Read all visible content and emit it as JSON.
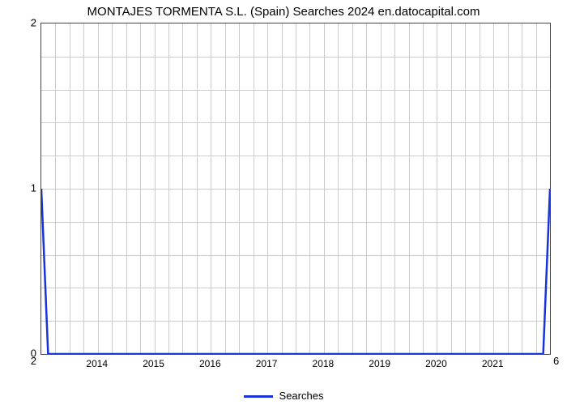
{
  "chart": {
    "type": "line",
    "title": "MONTAJES TORMENTA S.L. (Spain) Searches 2024 en.datocapital.com",
    "title_fontsize": 15,
    "title_color": "#000000",
    "background_color": "#ffffff",
    "plot_border_color": "#444444",
    "grid_color": "#cccccc",
    "series_color": "#1733d9",
    "series_line_width": 2.5,
    "x": {
      "min": 2013,
      "max": 2022,
      "ticks": [
        2014,
        2015,
        2016,
        2017,
        2018,
        2019,
        2020,
        2021
      ],
      "tick_labels": [
        "2014",
        "2015",
        "2016",
        "2017",
        "2018",
        "2019",
        "2020",
        "2021"
      ],
      "tick_fontsize": 12,
      "minor_per_major": 3
    },
    "y_left": {
      "min": 0,
      "max": 2,
      "ticks": [
        0,
        1,
        2
      ],
      "tick_fontsize": 13,
      "minor_per_major": 4
    },
    "y_right": {
      "ticks": [
        2,
        6
      ],
      "tick_fontsize": 13
    },
    "data": {
      "x": [
        2013,
        2013.12,
        2021.88,
        2022
      ],
      "y": [
        1,
        0,
        0,
        1
      ]
    },
    "legend": {
      "label": "Searches",
      "position": "bottom-center",
      "fontsize": 13,
      "line_width": 3,
      "line_color": "#1733d9"
    }
  }
}
